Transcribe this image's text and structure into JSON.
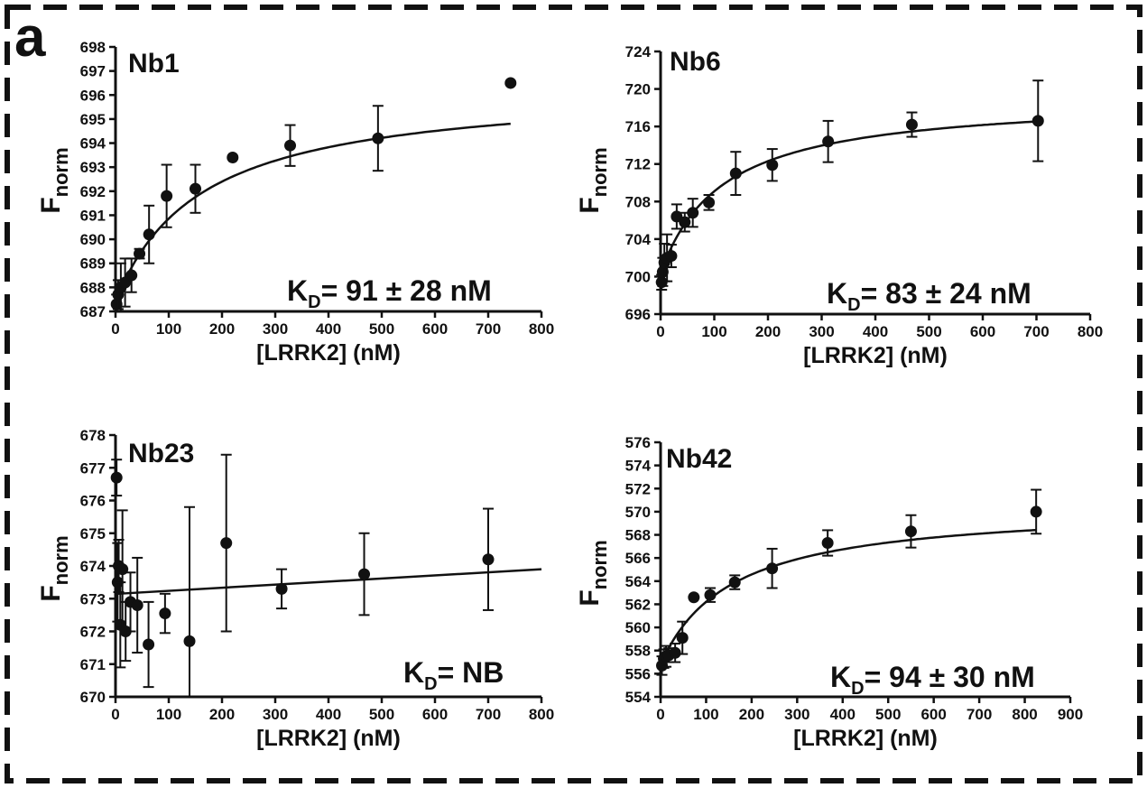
{
  "figure": {
    "panel_letter": "a"
  },
  "chart_data": [
    {
      "type": "scatter",
      "title": "Nb1",
      "xlabel": "[LRRK2] (nM)",
      "ylabel_main": "F",
      "ylabel_sub": "norm",
      "annotation_main": "K",
      "annotation_sub": "D",
      "annotation_rest": "= 91 ± 28 nM",
      "xlim": [
        0,
        800
      ],
      "ylim": [
        687,
        698
      ],
      "x_ticks": [
        0,
        100,
        200,
        300,
        400,
        500,
        600,
        700,
        800
      ],
      "y_ticks": [
        687,
        688,
        689,
        690,
        691,
        692,
        693,
        694,
        695,
        696,
        697,
        698
      ],
      "fit": "binding",
      "fit_params": {
        "base": 687.4,
        "amp": 9.0,
        "kd": 160
      },
      "points": [
        {
          "x": 2,
          "y": 687.3,
          "err": 0.4
        },
        {
          "x": 5,
          "y": 687.7,
          "err": 0.6
        },
        {
          "x": 10,
          "y": 688.0,
          "err": 1.0
        },
        {
          "x": 18,
          "y": 688.2,
          "err": 1.0
        },
        {
          "x": 30,
          "y": 688.5,
          "err": 0.7
        },
        {
          "x": 45,
          "y": 689.4,
          "err": 0.2
        },
        {
          "x": 63,
          "y": 690.2,
          "err": 1.2
        },
        {
          "x": 96,
          "y": 691.8,
          "err": 1.3
        },
        {
          "x": 150,
          "y": 692.1,
          "err": 1.0
        },
        {
          "x": 220,
          "y": 693.4,
          "err": 0.0
        },
        {
          "x": 328,
          "y": 693.9,
          "err": 0.85
        },
        {
          "x": 493,
          "y": 694.2,
          "err": 1.35
        },
        {
          "x": 742,
          "y": 696.5,
          "err": 0.0
        }
      ]
    },
    {
      "type": "scatter",
      "title": "Nb6",
      "xlabel": "[LRRK2] (nM)",
      "ylabel_main": "F",
      "ylabel_sub": "norm",
      "annotation_main": "K",
      "annotation_sub": "D",
      "annotation_rest": "= 83 ± 24 nM",
      "xlim": [
        0,
        800
      ],
      "ylim": [
        696,
        724
      ],
      "x_ticks": [
        0,
        100,
        200,
        300,
        400,
        500,
        600,
        700,
        800
      ],
      "y_ticks": [
        696,
        700,
        704,
        708,
        712,
        716,
        720,
        724
      ],
      "fit": "binding",
      "fit_params": {
        "base": 700.3,
        "amp": 18.9,
        "kd": 115
      },
      "points": [
        {
          "x": 2,
          "y": 699.4,
          "err": 0.8
        },
        {
          "x": 4,
          "y": 700.5,
          "err": 1.5
        },
        {
          "x": 7,
          "y": 701.5,
          "err": 2.0
        },
        {
          "x": 12,
          "y": 702.0,
          "err": 2.5
        },
        {
          "x": 20,
          "y": 702.2,
          "err": 1.2
        },
        {
          "x": 30,
          "y": 706.4,
          "err": 1.3
        },
        {
          "x": 45,
          "y": 705.8,
          "err": 1.0
        },
        {
          "x": 60,
          "y": 706.8,
          "err": 1.5
        },
        {
          "x": 90,
          "y": 707.9,
          "err": 0.8
        },
        {
          "x": 140,
          "y": 711.0,
          "err": 2.3
        },
        {
          "x": 208,
          "y": 711.9,
          "err": 1.7
        },
        {
          "x": 312,
          "y": 714.4,
          "err": 2.2
        },
        {
          "x": 468,
          "y": 716.2,
          "err": 1.3
        },
        {
          "x": 703,
          "y": 716.6,
          "err": 4.3
        }
      ]
    },
    {
      "type": "scatter",
      "title": "Nb23",
      "xlabel": "[LRRK2] (nM)",
      "ylabel_main": "F",
      "ylabel_sub": "norm",
      "annotation_main": "K",
      "annotation_sub": "D",
      "annotation_rest": "= NB",
      "xlim": [
        0,
        800
      ],
      "ylim": [
        670,
        678
      ],
      "x_ticks": [
        0,
        100,
        200,
        300,
        400,
        500,
        600,
        700,
        800
      ],
      "y_ticks": [
        670,
        671,
        672,
        673,
        674,
        675,
        676,
        677,
        678
      ],
      "fit": "linear",
      "fit_params": {
        "x0": 5,
        "y0": 673.15,
        "x1": 800,
        "y1": 673.9
      },
      "points": [
        {
          "x": 2,
          "y": 676.7,
          "err": 0.55
        },
        {
          "x": 4,
          "y": 673.5,
          "err": 1.2
        },
        {
          "x": 6,
          "y": 674.0,
          "err": 0.8
        },
        {
          "x": 9,
          "y": 672.2,
          "err": 1.3
        },
        {
          "x": 13,
          "y": 673.9,
          "err": 1.8
        },
        {
          "x": 19,
          "y": 672.0,
          "err": 0.9
        },
        {
          "x": 28,
          "y": 672.9,
          "err": 0.9
        },
        {
          "x": 41,
          "y": 672.8,
          "err": 1.45
        },
        {
          "x": 62,
          "y": 671.6,
          "err": 1.3
        },
        {
          "x": 93,
          "y": 672.55,
          "err": 0.6
        },
        {
          "x": 139,
          "y": 671.7,
          "err": 4.1
        },
        {
          "x": 208,
          "y": 674.7,
          "err": 2.7
        },
        {
          "x": 312,
          "y": 673.3,
          "err": 0.6
        },
        {
          "x": 467,
          "y": 673.75,
          "err": 1.25
        },
        {
          "x": 700,
          "y": 674.2,
          "err": 1.55
        }
      ]
    },
    {
      "type": "scatter",
      "title": "Nb42",
      "xlabel": "[LRRK2] (nM)",
      "ylabel_main": "F",
      "ylabel_sub": "norm",
      "annotation_main": "K",
      "annotation_sub": "D",
      "annotation_rest": "= 94 ± 30 nM",
      "xlim": [
        0,
        900
      ],
      "ylim": [
        554,
        576
      ],
      "x_ticks": [
        0,
        100,
        200,
        300,
        400,
        500,
        600,
        700,
        800,
        900
      ],
      "y_ticks": [
        554,
        556,
        558,
        560,
        562,
        564,
        566,
        568,
        570,
        572,
        574,
        576
      ],
      "fit": "binding",
      "fit_params": {
        "base": 556.8,
        "amp": 13.8,
        "kd": 155
      },
      "points": [
        {
          "x": 3,
          "y": 556.7,
          "err": 0.8
        },
        {
          "x": 7,
          "y": 557.3,
          "err": 0.8
        },
        {
          "x": 12,
          "y": 557.5,
          "err": 0.9
        },
        {
          "x": 18,
          "y": 557.6,
          "err": 0.6
        },
        {
          "x": 32,
          "y": 557.8,
          "err": 0.8
        },
        {
          "x": 48,
          "y": 559.1,
          "err": 1.4
        },
        {
          "x": 73,
          "y": 562.6,
          "err": 0.0
        },
        {
          "x": 109,
          "y": 562.8,
          "err": 0.6
        },
        {
          "x": 163,
          "y": 563.9,
          "err": 0.6
        },
        {
          "x": 245,
          "y": 565.1,
          "err": 1.7
        },
        {
          "x": 367,
          "y": 567.3,
          "err": 1.1
        },
        {
          "x": 550,
          "y": 568.3,
          "err": 1.4
        },
        {
          "x": 825,
          "y": 570.0,
          "err": 1.9
        }
      ]
    }
  ]
}
